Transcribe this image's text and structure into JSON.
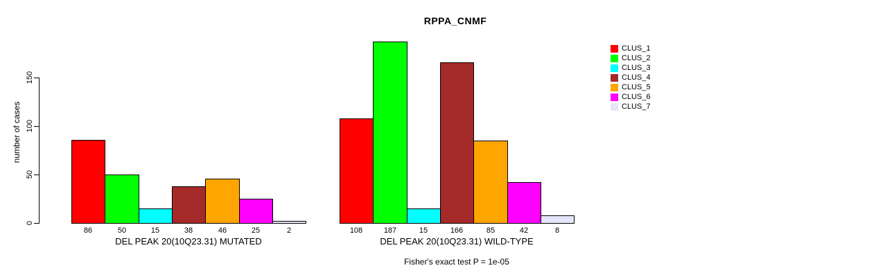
{
  "title": "RPPA_CNMF",
  "ylabel": "number of cases",
  "footer": "Fisher's exact test P = 1e-05",
  "legend": {
    "items": [
      {
        "label": "CLUS_1",
        "color": "#FF0000"
      },
      {
        "label": "CLUS_2",
        "color": "#00FF00"
      },
      {
        "label": "CLUS_3",
        "color": "#00FFFF"
      },
      {
        "label": "CLUS_4",
        "color": "#A52A2A"
      },
      {
        "label": "CLUS_5",
        "color": "#FFA500"
      },
      {
        "label": "CLUS_6",
        "color": "#FF00FF"
      },
      {
        "label": "CLUS_7",
        "color": "#E6E6FA"
      }
    ]
  },
  "chart_data": {
    "type": "bar",
    "title": "RPPA_CNMF",
    "xlabel": "",
    "ylabel": "number of cases",
    "yticks": [
      0,
      50,
      100,
      150
    ],
    "ylim": [
      0,
      190
    ],
    "grid": false,
    "legend_position": "right",
    "series_labels": [
      "CLUS_1",
      "CLUS_2",
      "CLUS_3",
      "CLUS_4",
      "CLUS_5",
      "CLUS_6",
      "CLUS_7"
    ],
    "colors": [
      "#FF0000",
      "#00FF00",
      "#00FFFF",
      "#A52A2A",
      "#FFA500",
      "#FF00FF",
      "#E6E6FA"
    ],
    "groups": [
      {
        "label": "DEL PEAK 20(10Q23.31) MUTATED",
        "values": [
          86,
          50,
          15,
          38,
          46,
          25,
          2
        ]
      },
      {
        "label": "DEL PEAK 20(10Q23.31) WILD-TYPE",
        "values": [
          108,
          187,
          15,
          166,
          85,
          42,
          8
        ]
      }
    ],
    "annotation": "Fisher's exact test P = 1e-05"
  }
}
